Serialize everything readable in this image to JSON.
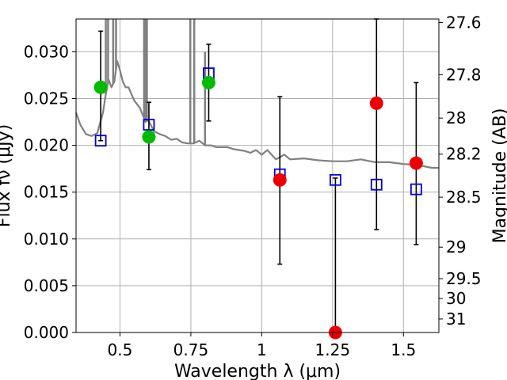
{
  "chart_data": {
    "type": "scatter",
    "xlabel": "Wavelength λ (μm)",
    "ylabel_left": "Flux fν (μJy)",
    "ylabel_right": "Magnitude (AB)",
    "xlim": [
      0.345,
      1.625
    ],
    "ylim": [
      0.0,
      0.0335
    ],
    "grid": true,
    "x_ticks": [
      {
        "value": 0.5,
        "label": "0.5"
      },
      {
        "value": 0.75,
        "label": "0.75"
      },
      {
        "value": 1.0,
        "label": "1"
      },
      {
        "value": 1.25,
        "label": "1.25"
      },
      {
        "value": 1.5,
        "label": "1.5"
      }
    ],
    "y_ticks": [
      {
        "value": 0.0,
        "label": "0.000"
      },
      {
        "value": 0.005,
        "label": "0.005"
      },
      {
        "value": 0.01,
        "label": "0.010"
      },
      {
        "value": 0.015,
        "label": "0.015"
      },
      {
        "value": 0.02,
        "label": "0.020"
      },
      {
        "value": 0.025,
        "label": "0.025"
      },
      {
        "value": 0.03,
        "label": "0.030"
      }
    ],
    "right_ticks": [
      {
        "mag": 27.6,
        "label": "27.6"
      },
      {
        "mag": 27.8,
        "label": "27.8"
      },
      {
        "mag": 28.0,
        "label": "28"
      },
      {
        "mag": 28.2,
        "label": "28.2"
      },
      {
        "mag": 28.5,
        "label": "28.5"
      },
      {
        "mag": 29.0,
        "label": "29"
      },
      {
        "mag": 29.5,
        "label": "29.5"
      },
      {
        "mag": 30.0,
        "label": "30"
      },
      {
        "mag": 31.0,
        "label": "31"
      }
    ],
    "colors": {
      "model": "#808080",
      "green": "#00bb00",
      "red": "#ee0000",
      "square": "#0000dd",
      "errorbar": "#000000",
      "grid": "#b0b0b0"
    },
    "model_spectrum": {
      "x": [
        0.345,
        0.36,
        0.38,
        0.4,
        0.42,
        0.44,
        0.45,
        0.46,
        0.47,
        0.48,
        0.49,
        0.5,
        0.51,
        0.52,
        0.53,
        0.55,
        0.57,
        0.59,
        0.6,
        0.62,
        0.64,
        0.66,
        0.68,
        0.7,
        0.72,
        0.74,
        0.76,
        0.78,
        0.8,
        0.82,
        0.84,
        0.86,
        0.88,
        0.9,
        0.92,
        0.94,
        0.96,
        0.98,
        1.0,
        1.02,
        1.05,
        1.08,
        1.1,
        1.15,
        1.2,
        1.25,
        1.3,
        1.35,
        1.4,
        1.45,
        1.5,
        1.55,
        1.6,
        1.625
      ],
      "y": [
        0.0235,
        0.0222,
        0.0212,
        0.021,
        0.0213,
        0.0235,
        0.0255,
        0.027,
        0.0262,
        0.0268,
        0.029,
        0.028,
        0.0268,
        0.0262,
        0.0262,
        0.0248,
        0.024,
        0.0225,
        0.0227,
        0.0215,
        0.0212,
        0.021,
        0.0206,
        0.0207,
        0.0203,
        0.0202,
        0.0202,
        0.0205,
        0.02,
        0.02,
        0.0198,
        0.0198,
        0.0198,
        0.0196,
        0.0195,
        0.0194,
        0.0192,
        0.0195,
        0.019,
        0.0195,
        0.0185,
        0.019,
        0.0185,
        0.0186,
        0.0184,
        0.0183,
        0.0183,
        0.0185,
        0.0182,
        0.0182,
        0.018,
        0.0179,
        0.0176,
        0.0176
      ]
    },
    "model_spikes": [
      {
        "x": 0.45,
        "y": 0.0335
      },
      {
        "x": 0.458,
        "y": 0.0335
      },
      {
        "x": 0.476,
        "y": 0.0335
      },
      {
        "x": 0.486,
        "y": 0.0335
      },
      {
        "x": 0.585,
        "y": 0.0335
      },
      {
        "x": 0.59,
        "y": 0.0335
      },
      {
        "x": 0.595,
        "y": 0.0335
      },
      {
        "x": 0.748,
        "y": 0.0335
      },
      {
        "x": 0.762,
        "y": 0.0335
      },
      {
        "x": 0.8,
        "y": 0.03
      }
    ],
    "model_points": {
      "x": [
        0.432,
        0.602,
        0.813,
        1.064,
        1.26,
        1.405,
        1.545
      ],
      "y": [
        0.0205,
        0.0222,
        0.0277,
        0.0169,
        0.0163,
        0.0158,
        0.0153
      ]
    },
    "observed_green": {
      "x": [
        0.432,
        0.602,
        0.813
      ],
      "y": [
        0.0262,
        0.0209,
        0.0267
      ],
      "err_low": [
        0.0205,
        0.0174,
        0.0226
      ],
      "err_high": [
        0.0322,
        0.0246,
        0.0308
      ]
    },
    "observed_red": {
      "x": [
        1.064,
        1.26,
        1.405,
        1.545
      ],
      "y": [
        0.0163,
        0.0,
        0.0245,
        0.0181
      ],
      "err_low": [
        0.0073,
        0.0,
        0.011,
        0.0094
      ],
      "err_high": [
        0.0252,
        0.0165,
        0.0335,
        0.0267
      ]
    }
  }
}
